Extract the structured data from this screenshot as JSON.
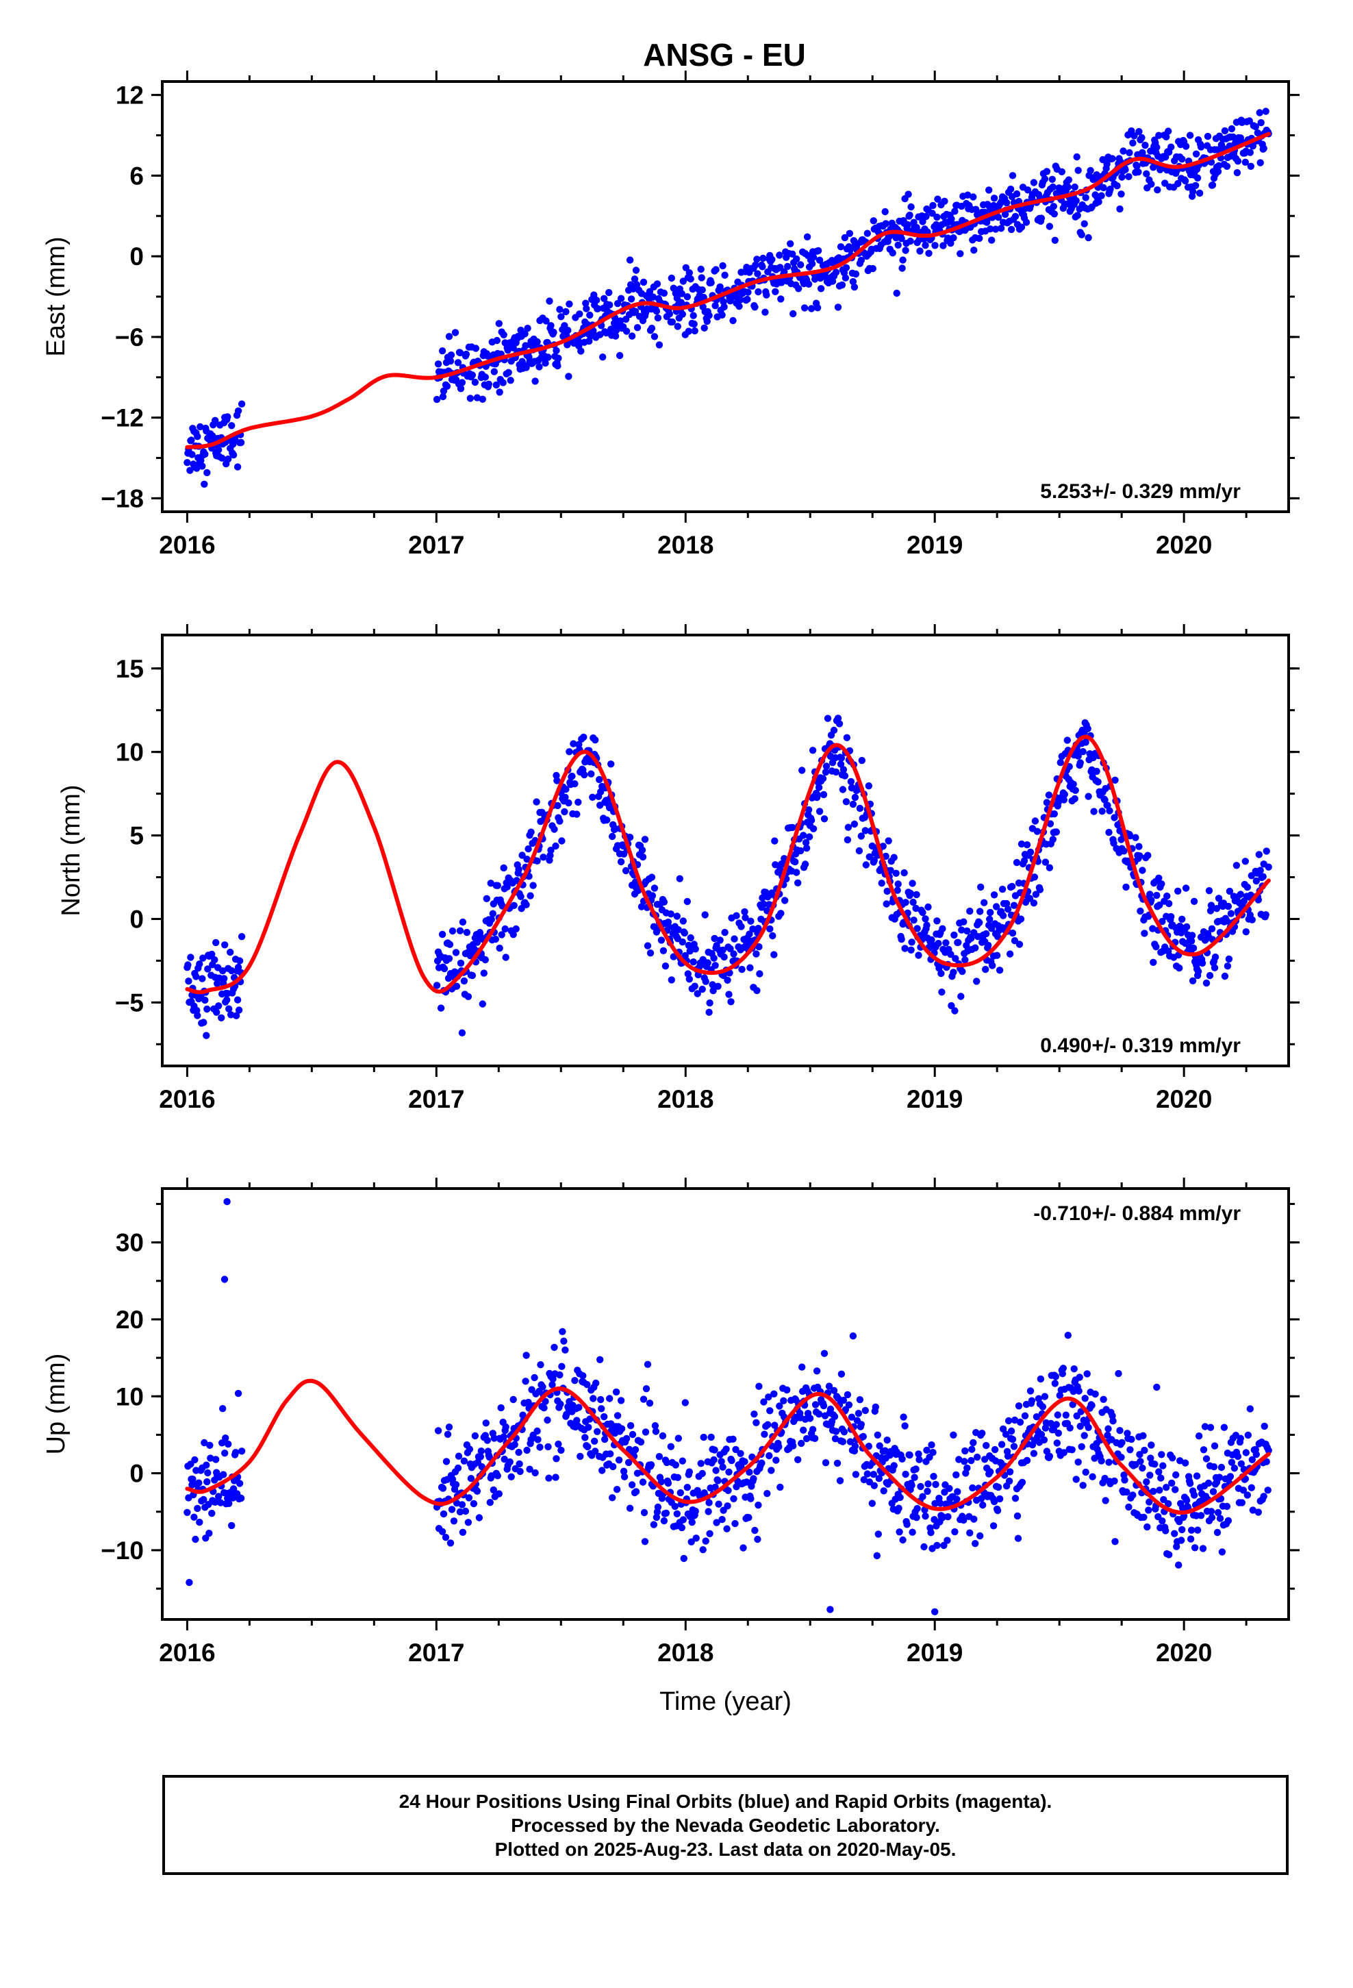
{
  "title": "ANSG - EU",
  "colors": {
    "data": "#0000ff",
    "model": "#ff0000",
    "axis": "#000000"
  },
  "chart_data": [
    {
      "type": "scatter",
      "ylabel": "East (mm)",
      "xlabel": "",
      "xlim": [
        2015.9,
        2020.42
      ],
      "ylim": [
        -19,
        13
      ],
      "xticks": [
        2016,
        2017,
        2018,
        2019,
        2020
      ],
      "yticks": [
        -18,
        -12,
        -6,
        0,
        6,
        12
      ],
      "ytick_labels": [
        "−18",
        "−12",
        "−6",
        "0",
        "6",
        "12"
      ],
      "rate_label": "5.253+/- 0.329 mm/yr",
      "rate_position": "bottom-right",
      "gaps": [
        [
          2016.22,
          2017.0
        ]
      ],
      "series": [
        {
          "name": "Final Orbits (blue)",
          "color": "#0000ff",
          "model": {
            "offset": -14.9,
            "trend": 5.253,
            "sin1": -0.45,
            "cos1": -0.6,
            "sin2": -0.25,
            "cos2": 0.2
          },
          "noise": 1.1,
          "start": 2016.0,
          "end": 2020.34
        },
        {
          "name": "Model",
          "color": "#ff0000",
          "x": [
            2016.0,
            2016.1,
            2016.25,
            2016.5,
            2016.65,
            2016.8,
            2017.0,
            2017.25,
            2017.5,
            2017.8,
            2018.0,
            2018.3,
            2018.6,
            2018.8,
            2019.0,
            2019.3,
            2019.6,
            2019.8,
            2020.0,
            2020.34
          ],
          "y": [
            -14.2,
            -14.0,
            -12.8,
            -11.9,
            -10.6,
            -8.9,
            -9.0,
            -7.6,
            -6.4,
            -3.6,
            -3.8,
            -1.8,
            -0.8,
            1.7,
            1.6,
            3.6,
            4.9,
            7.2,
            6.7,
            9.1
          ]
        }
      ]
    },
    {
      "type": "scatter",
      "ylabel": "North (mm)",
      "xlabel": "",
      "xlim": [
        2015.9,
        2020.42
      ],
      "ylim": [
        -8.8,
        17
      ],
      "xticks": [
        2016,
        2017,
        2018,
        2019,
        2020
      ],
      "yticks": [
        -5,
        0,
        5,
        10,
        15
      ],
      "ytick_labels": [
        "−5",
        "0",
        "5",
        "10",
        "15"
      ],
      "rate_label": "0.490+/- 0.319 mm/yr",
      "rate_position": "bottom-right",
      "gaps": [
        [
          2016.22,
          2017.0
        ]
      ],
      "series": [
        {
          "name": "Final Orbits (blue)",
          "color": "#0000ff",
          "model": {
            "offset": 3.2,
            "trend": 0.49,
            "sin1": -3.8,
            "cos1": -5.6,
            "sin2": -0.7,
            "cos2": -1.3
          },
          "noise": 1.2,
          "start": 2016.0,
          "end": 2020.34
        },
        {
          "name": "Model",
          "color": "#ff0000",
          "x": [
            2016.0,
            2016.08,
            2016.25,
            2016.45,
            2016.6,
            2016.75,
            2016.95,
            2017.1,
            2017.35,
            2017.6,
            2017.85,
            2018.05,
            2018.3,
            2018.6,
            2018.85,
            2019.05,
            2019.3,
            2019.6,
            2019.85,
            2020.05,
            2020.34
          ],
          "y": [
            -4.2,
            -4.3,
            -2.8,
            5.0,
            9.4,
            5.5,
            -3.5,
            -3.3,
            2.5,
            10.0,
            1.0,
            -3.1,
            -1.0,
            10.4,
            1.0,
            -2.7,
            -0.5,
            10.9,
            1.0,
            -2.1,
            2.3
          ]
        }
      ]
    },
    {
      "type": "scatter",
      "ylabel": "Up (mm)",
      "xlabel": "Time (year)",
      "xlim": [
        2015.9,
        2020.42
      ],
      "ylim": [
        -19,
        37
      ],
      "xticks": [
        2016,
        2017,
        2018,
        2019,
        2020
      ],
      "yticks": [
        -10,
        0,
        10,
        20,
        30
      ],
      "ytick_labels": [
        "−10",
        "0",
        "10",
        "20",
        "30"
      ],
      "rate_label": "-0.710+/- 0.884 mm/yr",
      "rate_position": "top-right",
      "gaps": [
        [
          2016.22,
          2017.0
        ]
      ],
      "outliers": [
        [
          2016.16,
          35.3
        ],
        [
          2016.15,
          25.2
        ],
        [
          2018.58,
          -17.7
        ],
        [
          2019.0,
          -18.0
        ]
      ],
      "series": [
        {
          "name": "Final Orbits (blue)",
          "color": "#0000ff",
          "model": {
            "offset": 5.3,
            "trend": -0.71,
            "sin1": 6.6,
            "cos1": -5.0,
            "sin2": -0.9,
            "cos2": 0.6
          },
          "noise": 3.6,
          "start": 2016.0,
          "end": 2020.34
        },
        {
          "name": "Model",
          "color": "#ff0000",
          "x": [
            2016.0,
            2016.08,
            2016.25,
            2016.4,
            2016.52,
            2016.7,
            2016.95,
            2017.1,
            2017.3,
            2017.5,
            2017.75,
            2018.0,
            2018.25,
            2018.53,
            2018.75,
            2019.0,
            2019.25,
            2019.53,
            2019.75,
            2020.0,
            2020.34
          ],
          "y": [
            -2.0,
            -2.2,
            1.5,
            9.5,
            11.8,
            5.0,
            -3.2,
            -2.8,
            4.5,
            11.0,
            3.0,
            -3.7,
            0.8,
            10.3,
            2.0,
            -4.6,
            -0.5,
            9.7,
            1.0,
            -5.1,
            2.5
          ]
        }
      ]
    }
  ],
  "footer": {
    "line1": "24 Hour Positions Using Final Orbits (blue) and Rapid Orbits (magenta).",
    "line2": "Processed by the Nevada Geodetic Laboratory.",
    "line3": "Plotted on 2025-Aug-23. Last data on 2020-May-05."
  }
}
